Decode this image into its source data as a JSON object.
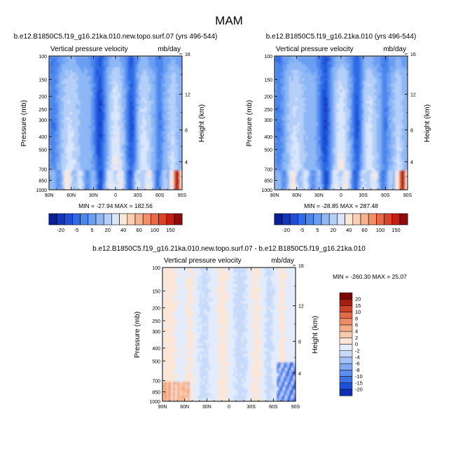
{
  "figure": {
    "title": "MAM"
  },
  "colors": {
    "wind_levels": [
      "#0a1f96",
      "#1536b8",
      "#1f4fd6",
      "#2f6be6",
      "#4b86ee",
      "#6a9ef2",
      "#8db7f5",
      "#b4cff8",
      "#d9e6fb",
      "#fde8d8",
      "#f9d0b4",
      "#f6b48e",
      "#f28f66",
      "#ea6a45",
      "#dc4426",
      "#c41f12",
      "#8f0a08"
    ],
    "diff_levels": [
      "#08127a",
      "#1230b4",
      "#1e50da",
      "#3a72e8",
      "#5b8fef",
      "#81aaf2",
      "#a5c2f6",
      "#c8dafa",
      "#e2ecfc",
      "#fde6d6",
      "#f8c9ac",
      "#f4ab86",
      "#ee8d65",
      "#e26a44",
      "#cd4327",
      "#a51e12",
      "#7a0606"
    ]
  },
  "chart_data": [
    {
      "type": "heatmap",
      "title": "b.e12.B1850C5.f19_g16.21ka.010.new.topo.surf.07 (yrs 496-544)",
      "left_label": "Vertical pressure velocity",
      "right_label": "mb/day",
      "ylabel": "Pressure (mb)",
      "y2label": "Height (km)",
      "x_ticks": [
        "90N",
        "60N",
        "30N",
        "0",
        "30S",
        "60S",
        "90S"
      ],
      "x_values": [
        90,
        60,
        30,
        0,
        -30,
        -60,
        -90
      ],
      "y_ticks": [
        "100",
        "150",
        "200",
        "250",
        "300",
        "400",
        "500",
        "700",
        "850",
        "1000"
      ],
      "y_values": [
        100,
        150,
        200,
        250,
        300,
        400,
        500,
        700,
        850,
        1000
      ],
      "y2_ticks": [
        "16",
        "12",
        "8",
        "4"
      ],
      "y2_values": [
        16,
        12,
        8,
        4
      ],
      "ylim": [
        1000,
        100
      ],
      "xlim": [
        90,
        -90
      ],
      "stats": "MIN = -27.94   MAX = 182.56",
      "min": -27.94,
      "max": 182.56
    },
    {
      "type": "heatmap",
      "title": "b.e12.B1850C5.f19_g16.21ka.010 (yrs 496-544)",
      "left_label": "Vertical pressure velocity",
      "right_label": "mb/day",
      "ylabel": "Pressure (mb)",
      "y2label": "Height (km)",
      "x_ticks": [
        "90N",
        "60N",
        "30N",
        "0",
        "30S",
        "60S",
        "90S"
      ],
      "x_values": [
        90,
        60,
        30,
        0,
        -30,
        -60,
        -90
      ],
      "y_ticks": [
        "100",
        "150",
        "200",
        "250",
        "300",
        "400",
        "500",
        "700",
        "850",
        "1000"
      ],
      "y_values": [
        100,
        150,
        200,
        250,
        300,
        400,
        500,
        700,
        850,
        1000
      ],
      "y2_ticks": [
        "16",
        "12",
        "8",
        "4"
      ],
      "y2_values": [
        16,
        12,
        8,
        4
      ],
      "ylim": [
        1000,
        100
      ],
      "xlim": [
        90,
        -90
      ],
      "stats": "MIN = -28.85   MAX = 287.48",
      "min": -28.85,
      "max": 287.48
    },
    {
      "type": "heatmap",
      "title": "b.e12.B1850C5.f19_g16.21ka.010.new.topo.surf.07 - b.e12.B1850C5.f19_g16.21ka.010",
      "left_label": "Vertical pressure velocity",
      "right_label": "mb/day",
      "ylabel": "Pressure (mb)",
      "y2label": "Height (km)",
      "x_ticks": [
        "90N",
        "60N",
        "30N",
        "0",
        "30S",
        "60S",
        "90S"
      ],
      "x_values": [
        90,
        60,
        30,
        0,
        -30,
        -60,
        -90
      ],
      "y_ticks": [
        "100",
        "150",
        "200",
        "250",
        "300",
        "400",
        "500",
        "700",
        "850",
        "1000"
      ],
      "y_values": [
        100,
        150,
        200,
        250,
        300,
        400,
        500,
        700,
        850,
        1000
      ],
      "y2_ticks": [
        "16",
        "12",
        "8",
        "4"
      ],
      "y2_values": [
        16,
        12,
        8,
        4
      ],
      "ylim": [
        1000,
        100
      ],
      "xlim": [
        90,
        -90
      ],
      "stats": "MIN = -260.30   MAX =  25.07",
      "min": -260.3,
      "max": 25.07
    }
  ],
  "colorbars": [
    {
      "orientation": "horizontal",
      "labels": [
        "-20",
        "-5",
        "5",
        "20",
        "40",
        "60",
        "100",
        "150"
      ]
    },
    {
      "orientation": "horizontal",
      "labels": [
        "-20",
        "-5",
        "5",
        "20",
        "40",
        "60",
        "100",
        "150"
      ]
    },
    {
      "orientation": "vertical",
      "labels": [
        "20",
        "15",
        "10",
        "8",
        "6",
        "4",
        "2",
        "0",
        "-2",
        "-4",
        "-6",
        "-8",
        "-10",
        "-15",
        "-20"
      ]
    }
  ]
}
